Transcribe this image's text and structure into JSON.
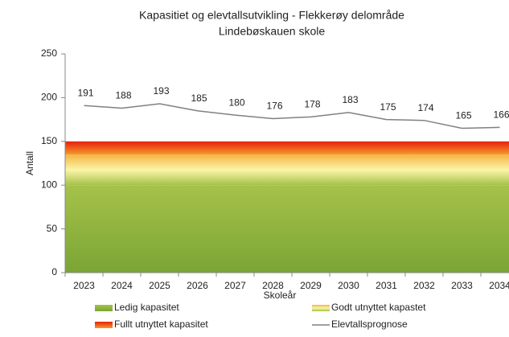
{
  "chart_data": {
    "type": "stacked_area_line",
    "title": "Kapasitiet og elevtallsutvikling - Flekkerøy delområde",
    "subtitle": "Lindebøskauen skole",
    "x_label": "Skoleår",
    "y_label": "Antall",
    "categories": [
      "2023",
      "2024",
      "2025",
      "2026",
      "2027",
      "2028",
      "2029",
      "2030",
      "2031",
      "2032",
      "2033",
      "2034"
    ],
    "ylim": [
      0,
      250
    ],
    "yticks": [
      0,
      50,
      100,
      150,
      200,
      250
    ],
    "series": [
      {
        "name": "Ledig kapasitet",
        "color": "#8db43e",
        "kind": "area",
        "values": [
          100,
          100,
          100,
          100,
          100,
          100,
          100,
          100,
          100,
          100,
          100,
          100
        ]
      },
      {
        "name": "Godt utnyttet kapastet",
        "color": "#f5c242",
        "kind": "area",
        "values": [
          35,
          35,
          35,
          35,
          35,
          35,
          35,
          35,
          35,
          35,
          35,
          35
        ]
      },
      {
        "name": "Fullt utnyttet kapasitet",
        "color": "#e8340f",
        "kind": "area",
        "values": [
          15,
          15,
          15,
          15,
          15,
          15,
          15,
          15,
          15,
          15,
          15,
          15
        ]
      },
      {
        "name": "Elevtallsprognose",
        "color": "#808080",
        "kind": "line",
        "values": [
          191,
          188,
          193,
          185,
          180,
          176,
          178,
          183,
          175,
          174,
          165,
          166
        ]
      }
    ]
  }
}
